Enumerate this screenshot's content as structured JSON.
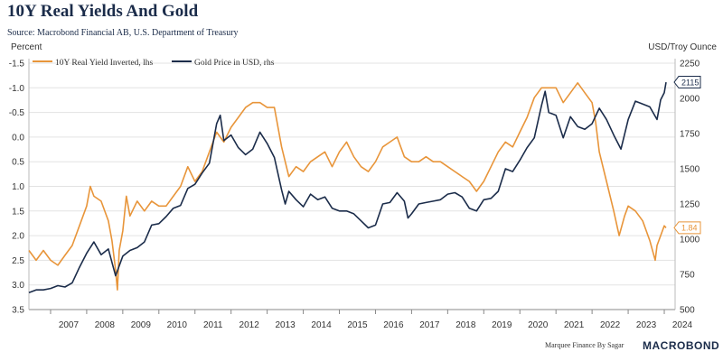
{
  "header": {
    "title": "10Y Real Yields And Gold",
    "source": "Source: Macrobond Financial AB, U.S. Department of Treasury"
  },
  "footer": {
    "credit": "Marquee Finance By Sagar",
    "logo_text": "MACROBOND"
  },
  "chart_data": {
    "type": "line",
    "left_axis": {
      "label": "Percent",
      "inverted": true,
      "ticks": [
        -1.5,
        -1.0,
        -0.5,
        0.0,
        0.5,
        1.0,
        1.5,
        2.0,
        2.5,
        3.0,
        3.5
      ],
      "tick_labels": [
        "-1.5",
        "-1.0",
        "-0.5",
        "0.0",
        "0.5",
        "1.0",
        "1.5",
        "2.0",
        "2.5",
        "3.0",
        "3.5"
      ],
      "range": [
        -1.5,
        3.5
      ]
    },
    "right_axis": {
      "label": "USD/Troy Ounce",
      "ticks": [
        500,
        750,
        1000,
        1250,
        1500,
        1750,
        2000,
        2250
      ],
      "tick_labels": [
        "500",
        "750",
        "1000",
        "1250",
        "1500",
        "1750",
        "2000",
        "2250"
      ],
      "range": [
        500,
        2250
      ]
    },
    "x_axis": {
      "range": [
        2006.4,
        2024.3
      ],
      "tick_labels": [
        "2007",
        "2008",
        "2009",
        "2010",
        "2011",
        "2012",
        "2013",
        "2014",
        "2015",
        "2016",
        "2017",
        "2018",
        "2019",
        "2020",
        "2021",
        "2022",
        "2023",
        "2024"
      ]
    },
    "grid": true,
    "legend_position": "top-left",
    "series": [
      {
        "name": "10Y Real Yield Inverted, lhs",
        "axis": "left",
        "color": "#e8953a",
        "last_value_label": "1.84",
        "points": [
          [
            2006.4,
            2.3
          ],
          [
            2006.6,
            2.5
          ],
          [
            2006.8,
            2.3
          ],
          [
            2007.0,
            2.5
          ],
          [
            2007.2,
            2.6
          ],
          [
            2007.4,
            2.4
          ],
          [
            2007.6,
            2.2
          ],
          [
            2007.8,
            1.8
          ],
          [
            2008.0,
            1.4
          ],
          [
            2008.1,
            1.0
          ],
          [
            2008.2,
            1.2
          ],
          [
            2008.4,
            1.3
          ],
          [
            2008.6,
            1.7
          ],
          [
            2008.7,
            2.1
          ],
          [
            2008.8,
            2.7
          ],
          [
            2008.85,
            3.1
          ],
          [
            2008.9,
            2.3
          ],
          [
            2009.0,
            1.9
          ],
          [
            2009.1,
            1.2
          ],
          [
            2009.2,
            1.6
          ],
          [
            2009.4,
            1.3
          ],
          [
            2009.6,
            1.5
          ],
          [
            2009.8,
            1.3
          ],
          [
            2010.0,
            1.4
          ],
          [
            2010.2,
            1.4
          ],
          [
            2010.4,
            1.2
          ],
          [
            2010.6,
            1.0
          ],
          [
            2010.8,
            0.6
          ],
          [
            2011.0,
            0.9
          ],
          [
            2011.2,
            0.7
          ],
          [
            2011.4,
            0.3
          ],
          [
            2011.6,
            -0.1
          ],
          [
            2011.8,
            0.1
          ],
          [
            2012.0,
            -0.2
          ],
          [
            2012.2,
            -0.4
          ],
          [
            2012.4,
            -0.6
          ],
          [
            2012.6,
            -0.7
          ],
          [
            2012.8,
            -0.7
          ],
          [
            2013.0,
            -0.6
          ],
          [
            2013.2,
            -0.6
          ],
          [
            2013.4,
            0.2
          ],
          [
            2013.6,
            0.8
          ],
          [
            2013.8,
            0.6
          ],
          [
            2014.0,
            0.7
          ],
          [
            2014.2,
            0.5
          ],
          [
            2014.4,
            0.4
          ],
          [
            2014.6,
            0.3
          ],
          [
            2014.8,
            0.6
          ],
          [
            2015.0,
            0.3
          ],
          [
            2015.2,
            0.1
          ],
          [
            2015.4,
            0.4
          ],
          [
            2015.6,
            0.6
          ],
          [
            2015.8,
            0.7
          ],
          [
            2016.0,
            0.5
          ],
          [
            2016.2,
            0.2
          ],
          [
            2016.4,
            0.1
          ],
          [
            2016.6,
            0.0
          ],
          [
            2016.8,
            0.4
          ],
          [
            2017.0,
            0.5
          ],
          [
            2017.2,
            0.5
          ],
          [
            2017.4,
            0.4
          ],
          [
            2017.6,
            0.5
          ],
          [
            2017.8,
            0.5
          ],
          [
            2018.0,
            0.6
          ],
          [
            2018.2,
            0.7
          ],
          [
            2018.4,
            0.8
          ],
          [
            2018.6,
            0.9
          ],
          [
            2018.8,
            1.1
          ],
          [
            2019.0,
            0.9
          ],
          [
            2019.2,
            0.6
          ],
          [
            2019.4,
            0.3
          ],
          [
            2019.6,
            0.1
          ],
          [
            2019.8,
            0.2
          ],
          [
            2020.0,
            -0.1
          ],
          [
            2020.2,
            -0.4
          ],
          [
            2020.4,
            -0.8
          ],
          [
            2020.6,
            -1.0
          ],
          [
            2020.8,
            -1.0
          ],
          [
            2021.0,
            -1.0
          ],
          [
            2021.2,
            -0.7
          ],
          [
            2021.4,
            -0.9
          ],
          [
            2021.6,
            -1.1
          ],
          [
            2021.8,
            -0.9
          ],
          [
            2022.0,
            -0.7
          ],
          [
            2022.1,
            -0.3
          ],
          [
            2022.2,
            0.3
          ],
          [
            2022.4,
            0.9
          ],
          [
            2022.6,
            1.5
          ],
          [
            2022.75,
            2.0
          ],
          [
            2022.9,
            1.6
          ],
          [
            2023.0,
            1.4
          ],
          [
            2023.2,
            1.5
          ],
          [
            2023.4,
            1.7
          ],
          [
            2023.6,
            2.1
          ],
          [
            2023.75,
            2.5
          ],
          [
            2023.8,
            2.2
          ],
          [
            2023.9,
            2.0
          ],
          [
            2024.0,
            1.8
          ],
          [
            2024.05,
            1.84
          ]
        ]
      },
      {
        "name": "Gold Price in USD, rhs",
        "axis": "right",
        "color": "#1b2c4a",
        "last_value_label": "2115",
        "points": [
          [
            2006.4,
            620
          ],
          [
            2006.6,
            640
          ],
          [
            2006.8,
            640
          ],
          [
            2007.0,
            650
          ],
          [
            2007.2,
            670
          ],
          [
            2007.4,
            660
          ],
          [
            2007.6,
            690
          ],
          [
            2007.8,
            800
          ],
          [
            2008.0,
            900
          ],
          [
            2008.2,
            980
          ],
          [
            2008.4,
            890
          ],
          [
            2008.6,
            930
          ],
          [
            2008.8,
            740
          ],
          [
            2009.0,
            880
          ],
          [
            2009.2,
            920
          ],
          [
            2009.4,
            940
          ],
          [
            2009.6,
            980
          ],
          [
            2009.8,
            1100
          ],
          [
            2010.0,
            1110
          ],
          [
            2010.2,
            1160
          ],
          [
            2010.4,
            1220
          ],
          [
            2010.6,
            1240
          ],
          [
            2010.8,
            1360
          ],
          [
            2011.0,
            1390
          ],
          [
            2011.2,
            1470
          ],
          [
            2011.4,
            1540
          ],
          [
            2011.6,
            1820
          ],
          [
            2011.7,
            1880
          ],
          [
            2011.8,
            1700
          ],
          [
            2012.0,
            1740
          ],
          [
            2012.2,
            1650
          ],
          [
            2012.4,
            1600
          ],
          [
            2012.6,
            1640
          ],
          [
            2012.8,
            1760
          ],
          [
            2013.0,
            1680
          ],
          [
            2013.2,
            1580
          ],
          [
            2013.4,
            1350
          ],
          [
            2013.5,
            1250
          ],
          [
            2013.6,
            1340
          ],
          [
            2013.8,
            1280
          ],
          [
            2014.0,
            1230
          ],
          [
            2014.2,
            1320
          ],
          [
            2014.4,
            1280
          ],
          [
            2014.6,
            1300
          ],
          [
            2014.8,
            1220
          ],
          [
            2015.0,
            1200
          ],
          [
            2015.2,
            1200
          ],
          [
            2015.4,
            1180
          ],
          [
            2015.6,
            1130
          ],
          [
            2015.8,
            1080
          ],
          [
            2016.0,
            1100
          ],
          [
            2016.2,
            1250
          ],
          [
            2016.4,
            1260
          ],
          [
            2016.6,
            1330
          ],
          [
            2016.8,
            1270
          ],
          [
            2016.9,
            1150
          ],
          [
            2017.0,
            1180
          ],
          [
            2017.2,
            1250
          ],
          [
            2017.4,
            1260
          ],
          [
            2017.6,
            1270
          ],
          [
            2017.8,
            1280
          ],
          [
            2018.0,
            1320
          ],
          [
            2018.2,
            1330
          ],
          [
            2018.4,
            1300
          ],
          [
            2018.6,
            1220
          ],
          [
            2018.8,
            1200
          ],
          [
            2019.0,
            1280
          ],
          [
            2019.2,
            1290
          ],
          [
            2019.4,
            1340
          ],
          [
            2019.6,
            1500
          ],
          [
            2019.8,
            1480
          ],
          [
            2020.0,
            1560
          ],
          [
            2020.2,
            1650
          ],
          [
            2020.4,
            1720
          ],
          [
            2020.6,
            1950
          ],
          [
            2020.7,
            2050
          ],
          [
            2020.8,
            1900
          ],
          [
            2021.0,
            1880
          ],
          [
            2021.2,
            1720
          ],
          [
            2021.4,
            1870
          ],
          [
            2021.6,
            1800
          ],
          [
            2021.8,
            1780
          ],
          [
            2022.0,
            1820
          ],
          [
            2022.2,
            1930
          ],
          [
            2022.4,
            1850
          ],
          [
            2022.6,
            1740
          ],
          [
            2022.8,
            1640
          ],
          [
            2023.0,
            1850
          ],
          [
            2023.2,
            1980
          ],
          [
            2023.4,
            1960
          ],
          [
            2023.6,
            1940
          ],
          [
            2023.8,
            1850
          ],
          [
            2023.9,
            1990
          ],
          [
            2024.0,
            2040
          ],
          [
            2024.05,
            2115
          ]
        ]
      }
    ]
  }
}
